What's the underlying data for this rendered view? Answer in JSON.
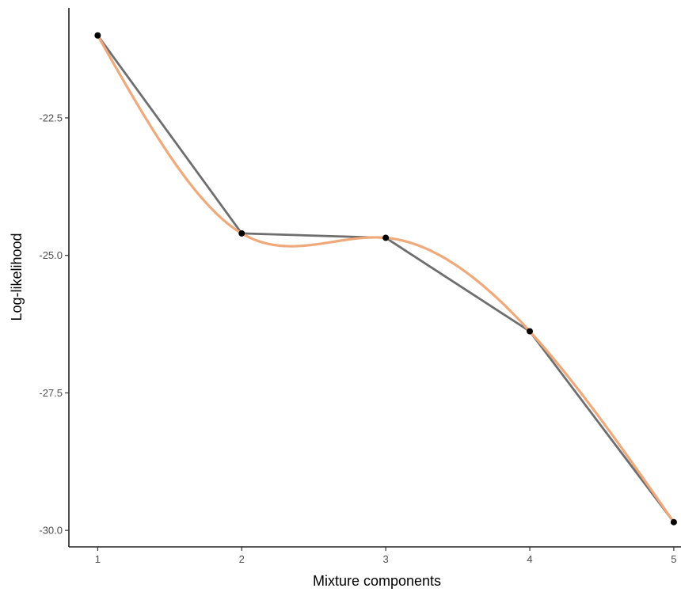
{
  "chart_data": {
    "type": "line",
    "title": "",
    "xlabel": "Mixture components",
    "ylabel": "Log-likelihood",
    "x": [
      1,
      2,
      3,
      4,
      5
    ],
    "xticks": [
      "1",
      "2",
      "3",
      "4",
      "5"
    ],
    "yticks": [
      "-22.5",
      "-25.0",
      "-27.5",
      "-30.0"
    ],
    "ytick_values": [
      -22.5,
      -25.0,
      -27.5,
      -30.0
    ],
    "xlim": [
      0.8,
      5.05
    ],
    "ylim": [
      -30.3,
      -20.5
    ],
    "grid": false,
    "series": [
      {
        "values": [
          -21.0,
          -24.6,
          -24.68,
          -26.38,
          -29.85
        ],
        "style": "straight-line-with-points",
        "color": "#6e6e6e",
        "point_color": "#000000"
      },
      {
        "values": [
          -21.0,
          -24.6,
          -24.68,
          -26.38,
          -29.85
        ],
        "style": "smooth-spline",
        "color": "#f0a97a"
      }
    ]
  }
}
